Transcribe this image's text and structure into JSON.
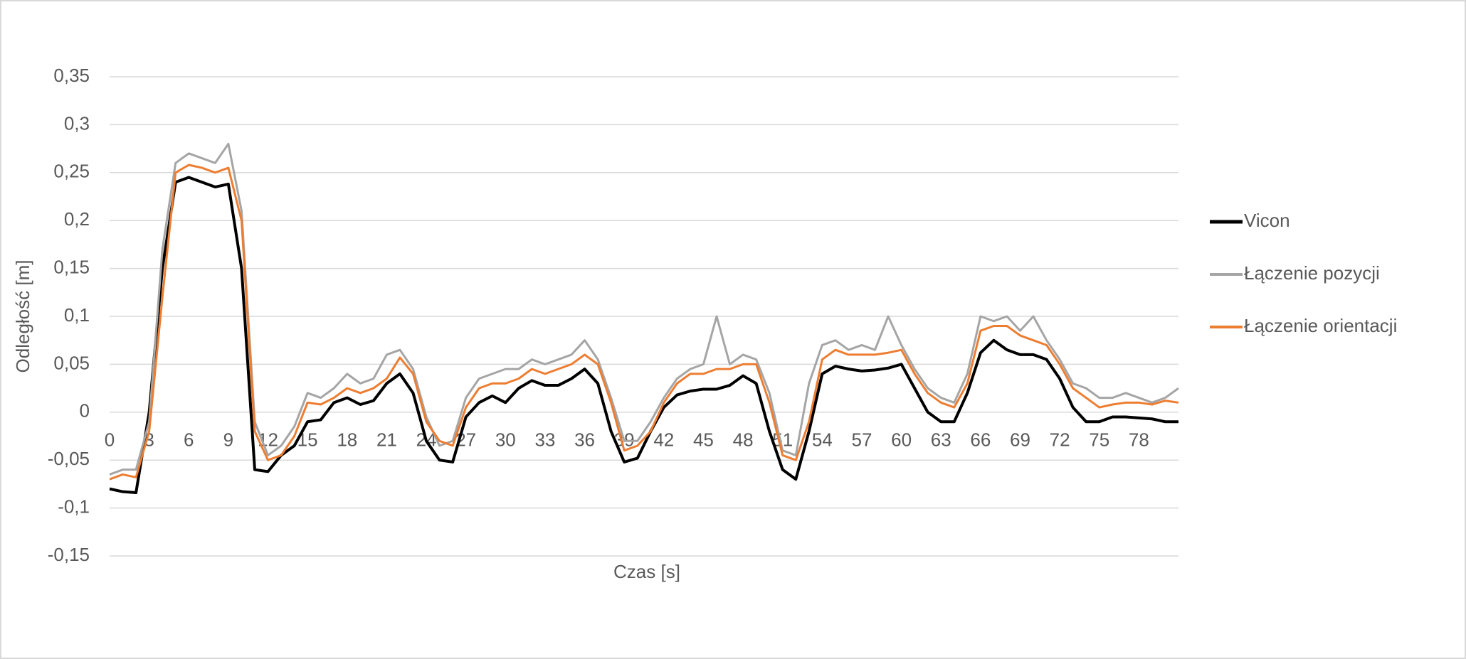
{
  "chart_data": {
    "type": "line",
    "x_label": "Czas [s]",
    "y_label": "Odległość [m]",
    "x": [
      0,
      1,
      2,
      3,
      4,
      5,
      6,
      7,
      8,
      9,
      10,
      11,
      12,
      13,
      14,
      15,
      16,
      17,
      18,
      19,
      20,
      21,
      22,
      23,
      24,
      25,
      26,
      27,
      28,
      29,
      30,
      31,
      32,
      33,
      34,
      35,
      36,
      37,
      38,
      39,
      40,
      41,
      42,
      43,
      44,
      45,
      46,
      47,
      48,
      49,
      50,
      51,
      52,
      53,
      54,
      55,
      56,
      57,
      58,
      59,
      60,
      61,
      62,
      63,
      64,
      65,
      66,
      67,
      68,
      69,
      70,
      71,
      72,
      73,
      74,
      75,
      76,
      77,
      78,
      79,
      80,
      81
    ],
    "xlim": [
      0,
      81
    ],
    "xticks": [
      0,
      3,
      6,
      9,
      12,
      15,
      18,
      21,
      24,
      27,
      30,
      33,
      36,
      39,
      42,
      45,
      48,
      51,
      54,
      57,
      60,
      63,
      66,
      69,
      72,
      75,
      78
    ],
    "ylim": [
      -0.15,
      0.35
    ],
    "yticks": [
      {
        "value": -0.15,
        "label": "-0,15"
      },
      {
        "value": -0.1,
        "label": "-0,1"
      },
      {
        "value": -0.05,
        "label": "-0,05"
      },
      0,
      {
        "value": 0.05,
        "label": "0,05"
      },
      {
        "value": 0.1,
        "label": "0,1"
      },
      {
        "value": 0.15,
        "label": "0,15"
      },
      {
        "value": 0.2,
        "label": "0,2"
      },
      {
        "value": 0.25,
        "label": "0,25"
      },
      {
        "value": 0.3,
        "label": "0,3"
      },
      {
        "value": 0.35,
        "label": "0,35"
      }
    ],
    "grid": true,
    "legend": "right",
    "series": [
      {
        "name": "Vicon",
        "color": "#000000",
        "width": 4,
        "values": [
          -0.08,
          -0.083,
          -0.084,
          0.0,
          0.15,
          0.24,
          0.245,
          0.24,
          0.235,
          0.238,
          0.15,
          -0.06,
          -0.062,
          -0.045,
          -0.035,
          -0.01,
          -0.008,
          0.01,
          0.015,
          0.008,
          0.012,
          0.03,
          0.04,
          0.02,
          -0.03,
          -0.05,
          -0.052,
          -0.005,
          0.01,
          0.017,
          0.01,
          0.025,
          0.033,
          0.028,
          0.028,
          0.035,
          0.045,
          0.03,
          -0.02,
          -0.052,
          -0.048,
          -0.02,
          0.005,
          0.018,
          0.022,
          0.024,
          0.024,
          0.028,
          0.038,
          0.03,
          -0.02,
          -0.06,
          -0.07,
          -0.02,
          0.04,
          0.048,
          0.045,
          0.043,
          0.044,
          0.046,
          0.05,
          0.025,
          0.0,
          -0.01,
          -0.01,
          0.02,
          0.062,
          0.075,
          0.065,
          0.06,
          0.06,
          0.055,
          0.035,
          0.005,
          -0.01,
          -0.01,
          -0.005,
          -0.005,
          -0.006,
          -0.007,
          -0.01,
          -0.01
        ]
      },
      {
        "name": "Łączenie pozycji",
        "color": "#a5a5a5",
        "width": 3,
        "values": [
          -0.065,
          -0.06,
          -0.06,
          -0.01,
          0.17,
          0.26,
          0.27,
          0.265,
          0.26,
          0.28,
          0.21,
          -0.01,
          -0.045,
          -0.035,
          -0.015,
          0.02,
          0.015,
          0.025,
          0.04,
          0.03,
          0.035,
          0.06,
          0.065,
          0.045,
          -0.005,
          -0.035,
          -0.03,
          0.015,
          0.035,
          0.04,
          0.045,
          0.045,
          0.055,
          0.05,
          0.055,
          0.06,
          0.075,
          0.055,
          0.015,
          -0.03,
          -0.03,
          -0.01,
          0.015,
          0.035,
          0.045,
          0.05,
          0.1,
          0.05,
          0.06,
          0.055,
          0.02,
          -0.04,
          -0.045,
          0.03,
          0.07,
          0.075,
          0.065,
          0.07,
          0.065,
          0.1,
          0.07,
          0.045,
          0.025,
          0.015,
          0.01,
          0.04,
          0.1,
          0.095,
          0.1,
          0.085,
          0.1,
          0.075,
          0.055,
          0.03,
          0.025,
          0.015,
          0.015,
          0.02,
          0.015,
          0.01,
          0.015,
          0.025
        ]
      },
      {
        "name": "Łączenie orientacji",
        "color": "#ed7d31",
        "width": 3,
        "values": [
          -0.07,
          -0.065,
          -0.068,
          -0.02,
          0.12,
          0.25,
          0.258,
          0.255,
          0.25,
          0.255,
          0.2,
          -0.02,
          -0.05,
          -0.045,
          -0.025,
          0.01,
          0.008,
          0.015,
          0.025,
          0.02,
          0.025,
          0.035,
          0.057,
          0.04,
          -0.01,
          -0.03,
          -0.035,
          0.005,
          0.025,
          0.03,
          0.03,
          0.035,
          0.045,
          0.04,
          0.045,
          0.05,
          0.06,
          0.05,
          0.01,
          -0.04,
          -0.035,
          -0.02,
          0.01,
          0.03,
          0.04,
          0.04,
          0.045,
          0.045,
          0.05,
          0.05,
          0.01,
          -0.045,
          -0.05,
          -0.01,
          0.055,
          0.065,
          0.06,
          0.06,
          0.06,
          0.062,
          0.065,
          0.04,
          0.02,
          0.01,
          0.005,
          0.03,
          0.085,
          0.09,
          0.09,
          0.08,
          0.075,
          0.07,
          0.05,
          0.025,
          0.015,
          0.005,
          0.008,
          0.01,
          0.01,
          0.008,
          0.012,
          0.01
        ]
      }
    ]
  }
}
